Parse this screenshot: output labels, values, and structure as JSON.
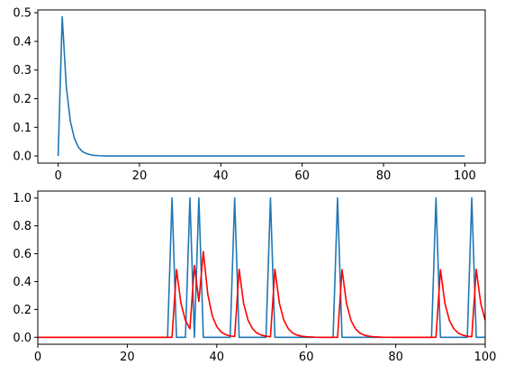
{
  "chart_data": [
    {
      "type": "line",
      "title": "",
      "xlabel": "",
      "ylabel": "",
      "xlim": [
        -5,
        105
      ],
      "ylim": [
        -0.025,
        0.51
      ],
      "x_ticks": [
        "0",
        "20",
        "40",
        "60",
        "80",
        "100"
      ],
      "y_ticks": [
        "0.0",
        "0.1",
        "0.2",
        "0.3",
        "0.4",
        "0.5"
      ],
      "grid": false,
      "legend": "none",
      "series": [
        {
          "color": "#1f77b4",
          "x": [
            0,
            1,
            2,
            3,
            4,
            5,
            6,
            7,
            8,
            9,
            10,
            12,
            15,
            20,
            30,
            40,
            50,
            60,
            70,
            80,
            90,
            100
          ],
          "y": [
            0.0,
            0.486,
            0.243,
            0.121,
            0.061,
            0.03,
            0.015,
            0.008,
            0.004,
            0.002,
            0.001,
            0.0,
            0.0,
            0.0,
            0.0,
            0.0,
            0.0,
            0.0,
            0.0,
            0.0,
            0.0,
            0.0
          ]
        }
      ]
    },
    {
      "type": "line",
      "title": "",
      "xlabel": "",
      "ylabel": "",
      "xlim": [
        0,
        100
      ],
      "ylim": [
        -0.05,
        1.05
      ],
      "x_ticks": [
        "0",
        "20",
        "40",
        "60",
        "80",
        "100"
      ],
      "y_ticks": [
        "0.0",
        "0.2",
        "0.4",
        "0.6",
        "0.8",
        "1.0"
      ],
      "grid": false,
      "legend": "none",
      "series": [
        {
          "color": "#1f77b4",
          "spikes": [
            30,
            34,
            36,
            44,
            52,
            67,
            89,
            97
          ],
          "x": [
            0,
            29,
            30,
            31,
            33,
            34,
            35,
            36,
            37,
            43,
            44,
            45,
            51,
            52,
            53,
            66,
            67,
            68,
            88,
            89,
            90,
            96,
            97,
            98,
            100
          ],
          "y": [
            0,
            0,
            1,
            0,
            0,
            1,
            0,
            1,
            0,
            0,
            1,
            0,
            0,
            1,
            0,
            0,
            1,
            0,
            0,
            1,
            0,
            0,
            1,
            0,
            0
          ]
        },
        {
          "color": "#ff0000",
          "x": [
            0,
            30,
            31,
            32,
            33,
            34,
            35,
            36,
            37,
            38,
            39,
            40,
            41,
            42,
            43,
            44,
            45,
            46,
            47,
            48,
            49,
            50,
            51,
            52,
            53,
            54,
            55,
            56,
            57,
            58,
            59,
            60,
            62,
            64,
            66,
            67,
            68,
            69,
            70,
            71,
            72,
            73,
            74,
            75,
            77,
            80,
            85,
            88,
            89,
            90,
            91,
            92,
            93,
            94,
            95,
            96,
            97,
            98,
            99,
            100
          ],
          "y": [
            0,
            0,
            0.486,
            0.243,
            0.121,
            0.061,
            0.516,
            0.258,
            0.615,
            0.308,
            0.154,
            0.077,
            0.038,
            0.019,
            0.01,
            0.005,
            0.488,
            0.244,
            0.122,
            0.061,
            0.03,
            0.015,
            0.008,
            0.004,
            0.488,
            0.244,
            0.122,
            0.061,
            0.03,
            0.015,
            0.008,
            0.004,
            0.001,
            0,
            0,
            0,
            0.486,
            0.243,
            0.121,
            0.061,
            0.03,
            0.015,
            0.008,
            0.004,
            0.001,
            0,
            0,
            0,
            0,
            0.486,
            0.243,
            0.121,
            0.061,
            0.03,
            0.015,
            0.008,
            0.004,
            0.488,
            0.244,
            0.122
          ]
        }
      ]
    }
  ]
}
